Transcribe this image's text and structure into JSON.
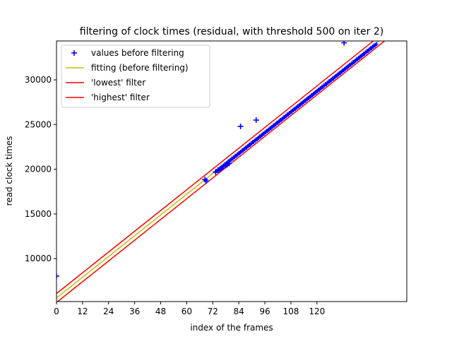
{
  "chart_data": {
    "type": "scatter",
    "title": "filtering of clock times (residual, with threshold 500 on iter 2)",
    "xlabel": "index of the frames",
    "ylabel": "read clock times",
    "xlim": [
      0,
      161.4
    ],
    "ylim": [
      5200,
      34350
    ],
    "x_ticks": [
      0,
      12,
      24,
      36,
      48,
      60,
      72,
      84,
      96,
      108,
      120
    ],
    "x_tick_labels": [
      "0",
      "12",
      "24",
      "36",
      "48",
      "60",
      "72",
      "84",
      "96",
      "108",
      "120"
    ],
    "y_ticks": [
      10000,
      15000,
      20000,
      25000,
      30000
    ],
    "y_tick_labels": [
      "10000",
      "15000",
      "20000",
      "25000",
      "30000"
    ],
    "grid": false,
    "legend_position": "top-left",
    "x_offset": 0,
    "series": [
      {
        "name": "values before filtering",
        "kind": "marker",
        "marker": "+",
        "color": "#0000ff",
        "x": [
          0,
          68.4,
          69,
          73.3,
          74.5,
          75.3,
          76,
          76.9,
          77.8,
          78.6,
          79.5,
          84.8,
          92,
          132.5
        ],
        "y": [
          8050,
          18850,
          18700,
          19700,
          19900,
          20000,
          20100,
          20300,
          20400,
          20500,
          20650,
          24800,
          25500,
          34150
        ],
        "dense_x_range": [
          73.3,
          147.3
        ],
        "dense_y_range": [
          19700,
          34000
        ]
      },
      {
        "name": "fitting (before filtering)",
        "kind": "line",
        "color": "#bfbf00",
        "slope": 193.5,
        "intercept": 5600
      },
      {
        "name": "'lowest' filter",
        "kind": "line",
        "color": "#ff0000",
        "slope": 193.5,
        "intercept": 5100
      },
      {
        "name": "'highest' filter",
        "kind": "line",
        "color": "#ff0000",
        "slope": 193.5,
        "intercept": 6100
      }
    ]
  }
}
